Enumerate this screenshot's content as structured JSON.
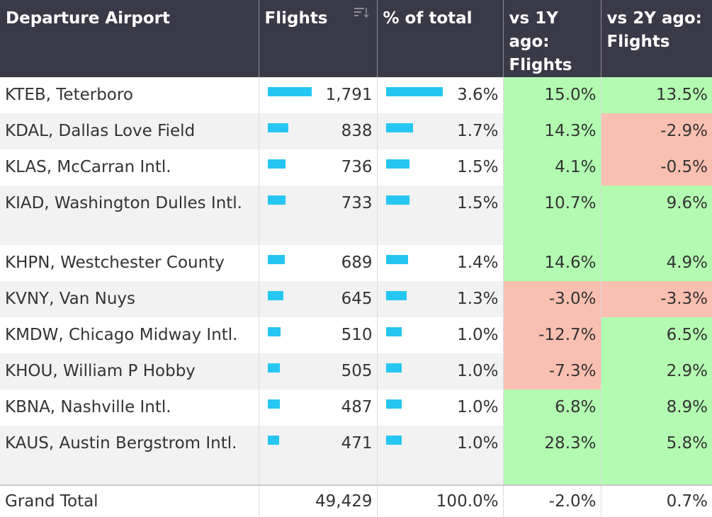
{
  "headers": {
    "airport": "Departure Airport",
    "flights": "Flights",
    "pct": "% of total",
    "vs1y": "vs 1Y ago: Flights",
    "vs2y": "vs 2Y ago: Flights"
  },
  "rows": [
    {
      "airport": "KTEB, Teterboro",
      "flights": "1,791",
      "pct": "3.6%",
      "vs1y": "15.0%",
      "vs2y": "13.5%",
      "flights_value": 1791,
      "pct_value": 3.6,
      "vs1y_status": "pos",
      "vs2y_status": "pos"
    },
    {
      "airport": "KDAL, Dallas Love Field",
      "flights": "838",
      "pct": "1.7%",
      "vs1y": "14.3%",
      "vs2y": "-2.9%",
      "flights_value": 838,
      "pct_value": 1.7,
      "vs1y_status": "pos",
      "vs2y_status": "neg"
    },
    {
      "airport": "KLAS, McCarran Intl.",
      "flights": "736",
      "pct": "1.5%",
      "vs1y": "4.1%",
      "vs2y": "-0.5%",
      "flights_value": 736,
      "pct_value": 1.5,
      "vs1y_status": "pos",
      "vs2y_status": "neg"
    },
    {
      "airport": "KIAD, Washington Dulles Intl.",
      "flights": "733",
      "pct": "1.5%",
      "vs1y": "10.7%",
      "vs2y": "9.6%",
      "flights_value": 733,
      "pct_value": 1.5,
      "vs1y_status": "pos",
      "vs2y_status": "pos"
    },
    {
      "airport": "KHPN, Westchester County",
      "flights": "689",
      "pct": "1.4%",
      "vs1y": "14.6%",
      "vs2y": "4.9%",
      "flights_value": 689,
      "pct_value": 1.4,
      "vs1y_status": "pos",
      "vs2y_status": "pos"
    },
    {
      "airport": "KVNY, Van Nuys",
      "flights": "645",
      "pct": "1.3%",
      "vs1y": "-3.0%",
      "vs2y": "-3.3%",
      "flights_value": 645,
      "pct_value": 1.3,
      "vs1y_status": "neg",
      "vs2y_status": "neg"
    },
    {
      "airport": "KMDW, Chicago Midway Intl.",
      "flights": "510",
      "pct": "1.0%",
      "vs1y": "-12.7%",
      "vs2y": "6.5%",
      "flights_value": 510,
      "pct_value": 1.0,
      "vs1y_status": "neg",
      "vs2y_status": "pos"
    },
    {
      "airport": "KHOU, William P Hobby",
      "flights": "505",
      "pct": "1.0%",
      "vs1y": "-7.3%",
      "vs2y": "2.9%",
      "flights_value": 505,
      "pct_value": 1.0,
      "vs1y_status": "neg",
      "vs2y_status": "pos"
    },
    {
      "airport": "KBNA, Nashville Intl.",
      "flights": "487",
      "pct": "1.0%",
      "vs1y": "6.8%",
      "vs2y": "8.9%",
      "flights_value": 487,
      "pct_value": 1.0,
      "vs1y_status": "pos",
      "vs2y_status": "pos"
    },
    {
      "airport": "KAUS, Austin Bergstrom Intl.",
      "flights": "471",
      "pct": "1.0%",
      "vs1y": "28.3%",
      "vs2y": "5.8%",
      "flights_value": 471,
      "pct_value": 1.0,
      "vs1y_status": "pos",
      "vs2y_status": "pos"
    }
  ],
  "total": {
    "label": "Grand Total",
    "flights": "49,429",
    "pct": "100.0%",
    "vs1y": "-2.0%",
    "vs2y": "0.7%"
  },
  "icons": {
    "sort": "sort-descending-icon"
  },
  "colors": {
    "header_bg": "#3a3948",
    "bar": "#26c6f2",
    "positive": "#b2fbb0",
    "negative": "#f9bfb0",
    "alt_row": "#f2f2f2"
  }
}
